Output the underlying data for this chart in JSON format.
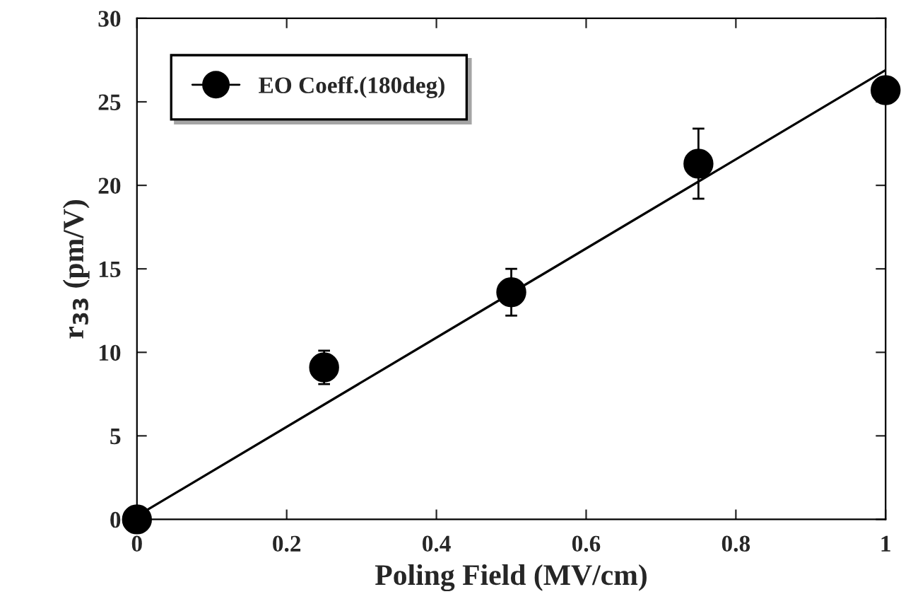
{
  "chart_data": {
    "type": "scatter",
    "xlabel": "Poling Field (MV/cm)",
    "ylabel": "r$_{33}$ (pm/V)",
    "xlim": [
      0,
      1
    ],
    "ylim": [
      0,
      30
    ],
    "xticks": [
      0,
      0.2,
      0.4,
      0.6,
      0.8,
      1
    ],
    "yticks": [
      0,
      5,
      10,
      15,
      20,
      25,
      30
    ],
    "grid": false,
    "legend": "top left",
    "marker": "circle",
    "series": [
      {
        "name": "EO Coeff.(180deg)",
        "color": "#000000",
        "x": [
          0,
          0.25,
          0.5,
          0.75,
          1.0
        ],
        "values": [
          0,
          9.1,
          13.6,
          21.3,
          25.7
        ],
        "errors": [
          null,
          1.0,
          1.4,
          2.1,
          null
        ]
      },
      {
        "type": "line",
        "marker": "none",
        "color": "#000000",
        "x": [
          0,
          1
        ],
        "values": [
          0.2,
          26.9
        ]
      }
    ]
  }
}
